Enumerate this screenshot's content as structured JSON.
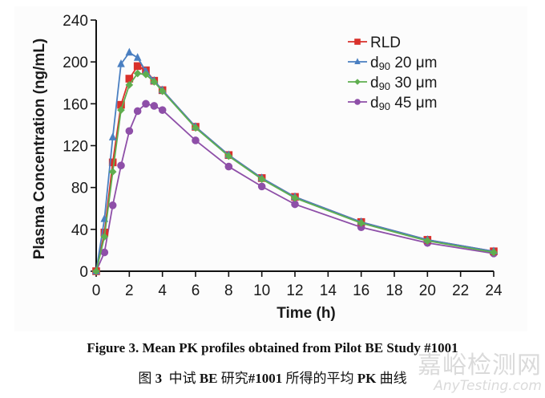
{
  "chart_data": {
    "type": "line",
    "title": "",
    "xlabel": "Time (h)",
    "ylabel": "Plasma Concentration (ng/mL)",
    "xlim": [
      0,
      24
    ],
    "ylim": [
      0,
      240
    ],
    "xticks": [
      0,
      2,
      4,
      6,
      8,
      10,
      12,
      14,
      16,
      18,
      20,
      22,
      24
    ],
    "yticks": [
      0,
      40,
      80,
      120,
      160,
      200,
      240
    ],
    "grid": false,
    "legend_position": "top-right",
    "x": [
      0,
      0.5,
      1,
      1.5,
      2,
      2.5,
      3,
      3.5,
      4,
      6,
      8,
      10,
      12,
      16,
      20,
      24
    ],
    "series": [
      {
        "name": "RLD",
        "color": "#d9312b",
        "marker": "square",
        "values": [
          0,
          37,
          104,
          159,
          184,
          196,
          192,
          182,
          173,
          138,
          111,
          89,
          71,
          47,
          30,
          19
        ]
      },
      {
        "name": "d90 20 μm",
        "name_parts": {
          "prefix": "d",
          "subscript": "90",
          "suffix": " 20 μm"
        },
        "color": "#4a7fc1",
        "marker": "triangle",
        "values": [
          0,
          50,
          128,
          198,
          209,
          204,
          191,
          182,
          173,
          138,
          111,
          89,
          71,
          47,
          30,
          19
        ]
      },
      {
        "name": "d90 30 μm",
        "name_parts": {
          "prefix": "d",
          "subscript": "90",
          "suffix": " 30 μm"
        },
        "color": "#5fae4f",
        "marker": "diamond",
        "values": [
          0,
          33,
          95,
          154,
          178,
          189,
          188,
          181,
          172,
          137,
          110,
          88,
          70,
          46,
          29,
          18
        ]
      },
      {
        "name": "d90 45 μm",
        "name_parts": {
          "prefix": "d",
          "subscript": "90",
          "suffix": " 45 μm"
        },
        "color": "#8e4fa8",
        "marker": "circle",
        "values": [
          0,
          18,
          63,
          101,
          134,
          153,
          160,
          158,
          154,
          125,
          100,
          81,
          64,
          42,
          27,
          17
        ]
      }
    ]
  },
  "captions": {
    "english": "Figure 3. Mean PK profiles obtained from Pilot BE Study #1001",
    "chinese_parts": [
      "图 ",
      "3",
      "  中试 ",
      "BE",
      " 研究",
      "#1001",
      " 所得的平均 ",
      "PK",
      " 曲线"
    ]
  },
  "watermark": {
    "line1": "嘉峪检测网",
    "line2": "AnyTesting.com"
  }
}
